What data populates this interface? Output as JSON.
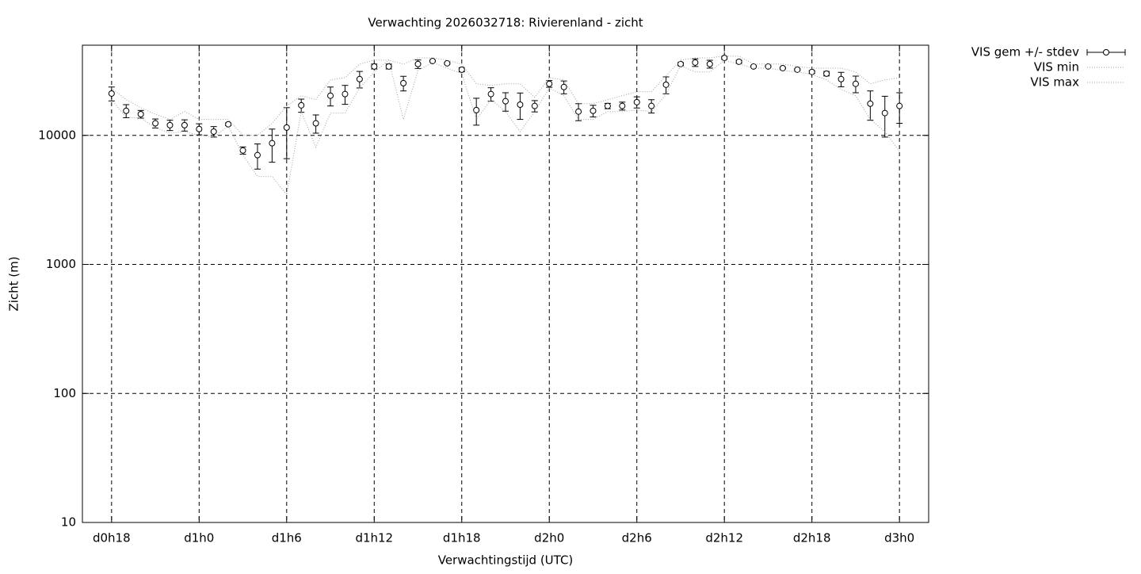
{
  "chart_data": {
    "type": "errorbar",
    "title": "Verwachting 2026032718: Rivierenland - zicht",
    "xlabel": "Verwachtingstijd (UTC)",
    "ylabel": "Zicht (m)",
    "x": [
      18,
      19,
      20,
      21,
      22,
      23,
      24,
      25,
      26,
      27,
      28,
      29,
      30,
      31,
      32,
      33,
      34,
      35,
      36,
      37,
      38,
      39,
      40,
      41,
      42,
      43,
      44,
      45,
      46,
      47,
      48,
      49,
      50,
      51,
      52,
      53,
      54,
      55,
      56,
      57,
      58,
      59,
      60,
      61,
      62,
      63,
      64,
      65,
      66,
      67,
      68,
      69,
      70,
      71,
      72
    ],
    "series": [
      {
        "name": "VIS gem +/- stdev",
        "color": "#000000",
        "values": [
          21100,
          15500,
          14600,
          12400,
          12000,
          12000,
          11200,
          10700,
          12200,
          7640,
          7030,
          8690,
          11500,
          17100,
          12400,
          20300,
          20900,
          27300,
          34200,
          34200,
          25400,
          35700,
          37700,
          36200,
          32300,
          15700,
          20900,
          18400,
          17300,
          16900,
          25100,
          23700,
          15300,
          15500,
          16900,
          16900,
          18100,
          16900,
          24700,
          35700,
          36700,
          35700,
          39900,
          37200,
          34200,
          34200,
          33200,
          32300,
          31000,
          30100,
          27300,
          25100,
          17600,
          14900,
          16900
        ],
        "errors": [
          2600,
          1800,
          1000,
          1000,
          1100,
          1200,
          1100,
          1000,
          300,
          500,
          1550,
          2500,
          4900,
          2000,
          2000,
          3400,
          3500,
          4000,
          1500,
          1500,
          3300,
          2700,
          500,
          500,
          1200,
          3700,
          2500,
          3000,
          4000,
          1700,
          1500,
          2700,
          2300,
          1600,
          800,
          1200,
          1800,
          2000,
          3700,
          1000,
          2500,
          2500,
          1000,
          1000,
          400,
          400,
          400,
          400,
          800,
          1200,
          3500,
          3700,
          4500,
          5200,
          4500
        ]
      },
      {
        "name": "VIS min",
        "color": "#a0a0a0",
        "values": [
          18900,
          13800,
          13600,
          11500,
          10400,
          10700,
          10000,
          9720,
          11800,
          7030,
          4800,
          4800,
          3470,
          15300,
          8090,
          14900,
          14900,
          23300,
          31000,
          38300,
          13300,
          31800,
          36700,
          33200,
          30100,
          13300,
          18900,
          15300,
          10700,
          15300,
          23300,
          20300,
          13300,
          13300,
          15300,
          15300,
          15700,
          15300,
          20800,
          34700,
          31000,
          31000,
          38300,
          35700,
          33200,
          33200,
          31800,
          31000,
          29700,
          26900,
          22700,
          20300,
          13300,
          10700,
          7540
        ]
      },
      {
        "name": "VIS max",
        "color": "#a0a0a0",
        "values": [
          23300,
          18900,
          16400,
          14600,
          13300,
          15300,
          13300,
          13300,
          13300,
          10000,
          10000,
          12400,
          16900,
          20300,
          18900,
          26900,
          28000,
          35700,
          38300,
          38300,
          35700,
          39900,
          39900,
          38300,
          35700,
          25100,
          24400,
          25100,
          25100,
          19700,
          28000,
          26900,
          17600,
          17600,
          18900,
          20300,
          21800,
          21800,
          28900,
          38300,
          39900,
          39900,
          41100,
          41100,
          35700,
          35700,
          35700,
          34200,
          33200,
          33200,
          33200,
          31000,
          25100,
          26900,
          28000
        ]
      }
    ],
    "xlim": [
      16,
      74
    ],
    "xticks": [
      {
        "value": 18,
        "label": "d0h18"
      },
      {
        "value": 24,
        "label": "d1h0"
      },
      {
        "value": 30,
        "label": "d1h6"
      },
      {
        "value": 36,
        "label": "d1h12"
      },
      {
        "value": 42,
        "label": "d1h18"
      },
      {
        "value": 48,
        "label": "d2h0"
      },
      {
        "value": 54,
        "label": "d2h6"
      },
      {
        "value": 60,
        "label": "d2h12"
      },
      {
        "value": 66,
        "label": "d2h18"
      },
      {
        "value": 72,
        "label": "d3h0"
      }
    ],
    "ylim": [
      10,
      50000
    ],
    "yticks": [
      10,
      100,
      1000,
      10000
    ],
    "ylog": true,
    "grid": true,
    "legend": "outside-right"
  }
}
